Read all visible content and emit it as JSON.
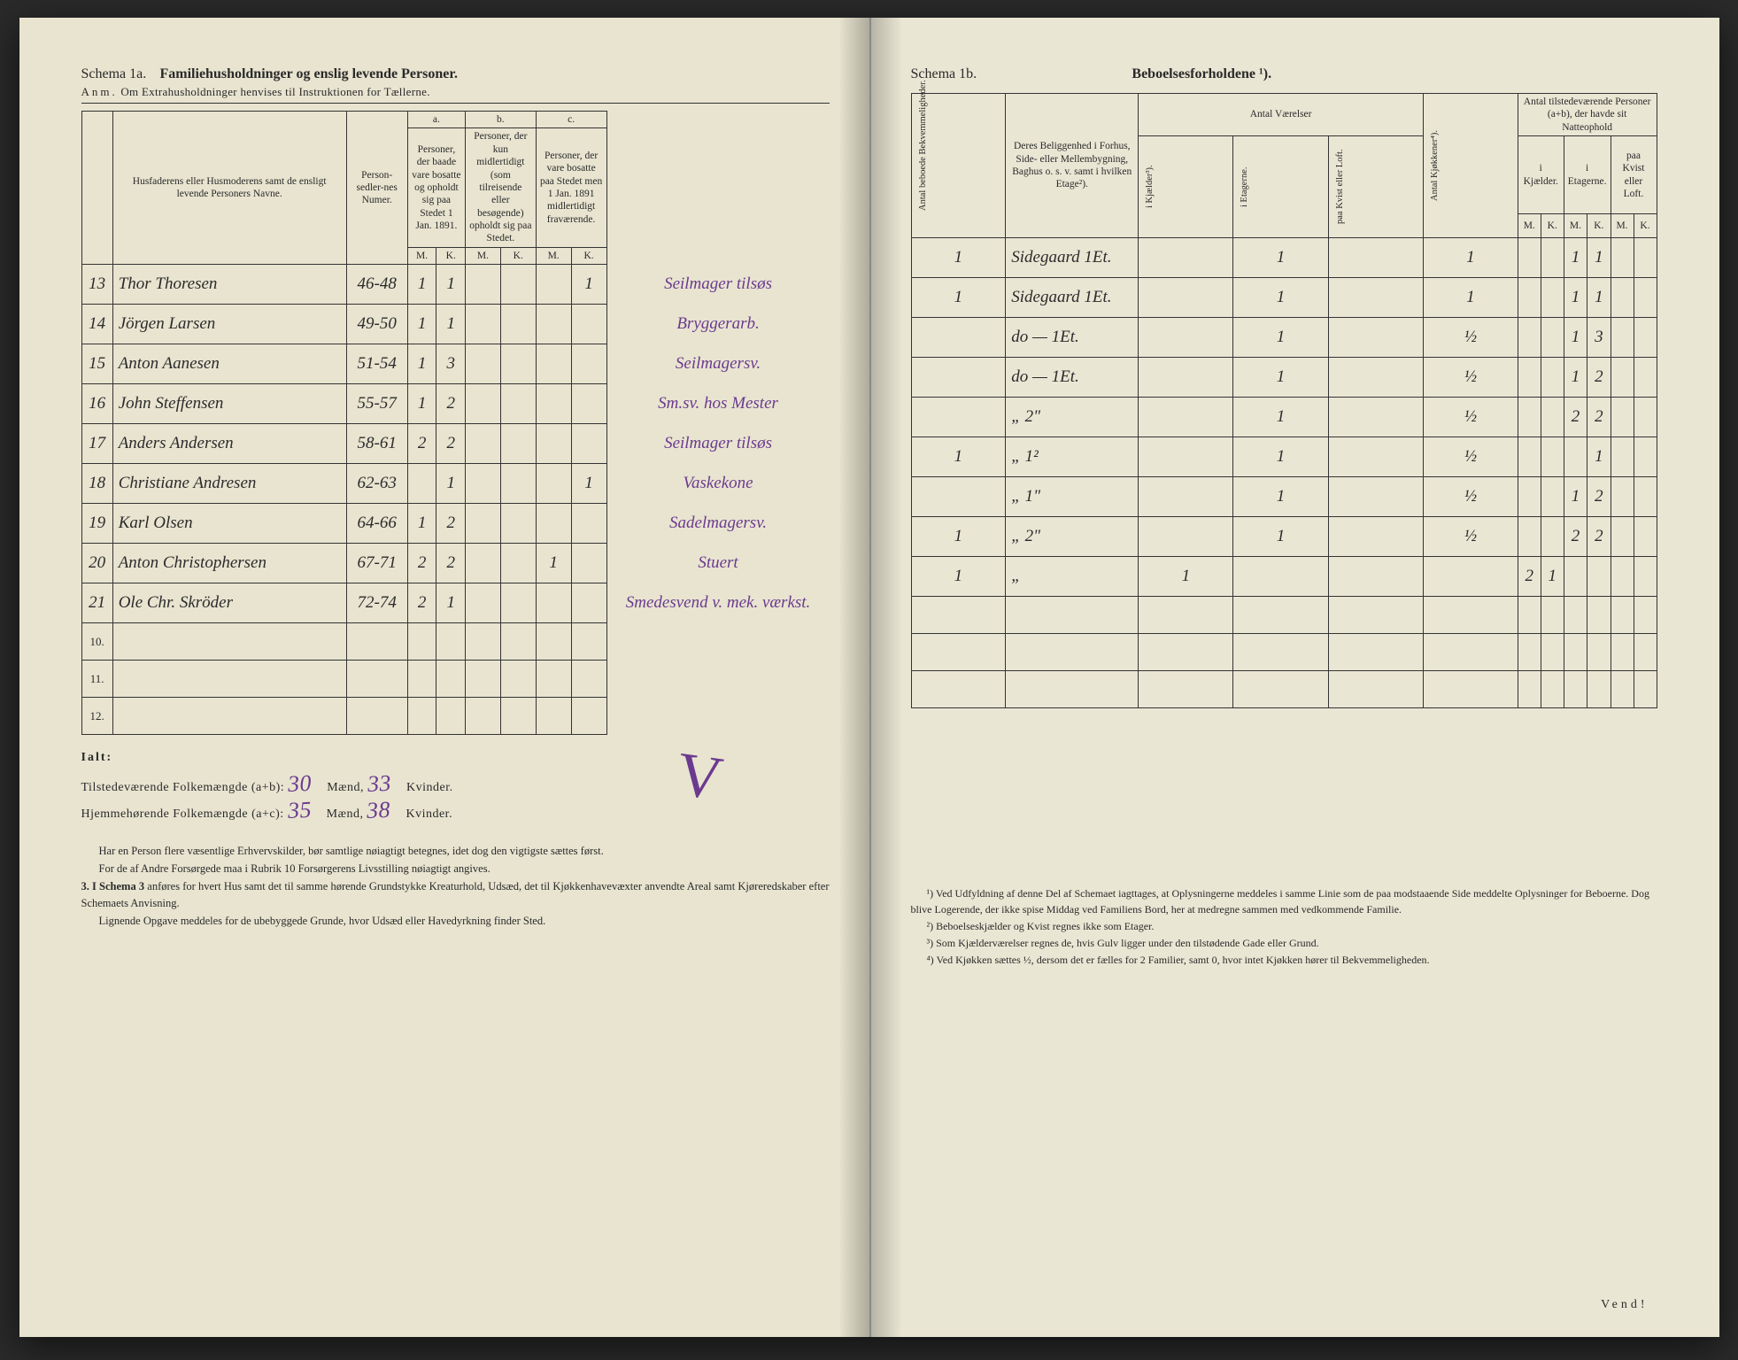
{
  "left": {
    "schema_label": "Schema 1a.",
    "schema_title": "Familiehusholdninger og enslig levende Personer.",
    "anm_label": "Anm.",
    "anm_text": "Om Extrahusholdninger henvises til Instruktionen for Tællerne.",
    "col_name": "Husfaderens eller Husmoderens samt de ensligt levende Personers Navne.",
    "col_sedler": "Person-sedler-nes Numer.",
    "group_a": "a.",
    "group_b": "b.",
    "group_c": "c.",
    "col_a": "Personer, der baade vare bosatte og opholdt sig paa Stedet 1 Jan. 1891.",
    "col_b": "Personer, der kun midlertidigt (som tilreisende eller besøgende) opholdt sig paa Stedet.",
    "col_c": "Personer, der vare bosatte paa Stedet men 1 Jan. 1891 midlertidigt fraværende.",
    "mk_m": "M.",
    "mk_k": "K.",
    "rows": [
      {
        "n": "13",
        "name": "Thor Thoresen",
        "sed": "46-48",
        "am": "1",
        "ak": "1",
        "bm": "",
        "bk": "",
        "cm": "",
        "ck": "1",
        "occ": "Seilmager tilsøs"
      },
      {
        "n": "14",
        "name": "Jörgen Larsen",
        "sed": "49-50",
        "am": "1",
        "ak": "1",
        "bm": "",
        "bk": "",
        "cm": "",
        "ck": "",
        "occ": "Bryggerarb."
      },
      {
        "n": "15",
        "name": "Anton Aanesen",
        "sed": "51-54",
        "am": "1",
        "ak": "3",
        "bm": "",
        "bk": "",
        "cm": "",
        "ck": "",
        "occ": "Seilmagersv."
      },
      {
        "n": "16",
        "name": "John Steffensen",
        "sed": "55-57",
        "am": "1",
        "ak": "2",
        "bm": "",
        "bk": "",
        "cm": "",
        "ck": "",
        "occ": "Sm.sv. hos Mester"
      },
      {
        "n": "17",
        "name": "Anders Andersen",
        "sed": "58-61",
        "am": "2",
        "ak": "2",
        "bm": "",
        "bk": "",
        "cm": "",
        "ck": "",
        "occ": "Seilmager tilsøs"
      },
      {
        "n": "18",
        "name": "Christiane Andresen",
        "sed": "62-63",
        "am": "",
        "ak": "1",
        "bm": "",
        "bk": "",
        "cm": "",
        "ck": "1",
        "occ": "Vaskekone"
      },
      {
        "n": "19",
        "name": "Karl Olsen",
        "sed": "64-66",
        "am": "1",
        "ak": "2",
        "bm": "",
        "bk": "",
        "cm": "",
        "ck": "",
        "occ": "Sadelmagersv."
      },
      {
        "n": "20",
        "name": "Anton Christophersen",
        "sed": "67-71",
        "am": "2",
        "ak": "2",
        "bm": "",
        "bk": "",
        "cm": "1",
        "ck": "",
        "occ": "Stuert"
      },
      {
        "n": "21",
        "name": "Ole Chr. Skröder",
        "sed": "72-74",
        "am": "2",
        "ak": "1",
        "bm": "",
        "bk": "",
        "cm": "",
        "ck": "",
        "occ": "Smedesvend v. mek. værkst."
      }
    ],
    "blank_rows": [
      "10.",
      "11.",
      "12."
    ],
    "totals_label": "Ialt:",
    "tot1_label": "Tilstedeværende Folkemængde (a+b):",
    "tot2_label": "Hjemmehørende Folkemængde (a+c):",
    "tot_m": "Mænd,",
    "tot_k": "Kvinder.",
    "tot1_m": "30",
    "tot1_k": "33",
    "tot2_m": "35",
    "tot2_k": "38",
    "para1": "Har en Person flere væsentlige Erhvervskilder, bør samtlige nøiagtigt betegnes, idet dog den vigtigste sættes først.",
    "para2": "For de af Andre Forsørgede maa i Rubrik 10 Forsørgerens Livsstilling nøiagtigt angives.",
    "para3_lead": "3. I Schema 3",
    "para3": " anføres for hvert Hus samt det til samme hørende Grundstykke Kreaturhold, Udsæd, det til Kjøkkenhavevæxter anvendte Areal samt Kjøreredskaber efter Schemaets Anvisning.",
    "para4": "Lignende Opgave meddeles for de ubebyggede Grunde, hvor Udsæd eller Havedyrkning finder Sted."
  },
  "right": {
    "schema_label": "Schema 1b.",
    "schema_title": "Beboelsesforholdene ¹).",
    "col_bekv": "Antal beboede Bekvemmeligheder.",
    "col_belig": "Deres Beliggenhed i Forhus, Side- eller Mellembygning, Baghus o. s. v. samt i hvilken Etage²).",
    "grp_vaer": "Antal Værelser",
    "col_kj": "i Kjælder³).",
    "col_et": "i Etagerne.",
    "col_kv": "paa Kvist eller Loft.",
    "col_kjok": "Antal Kjøkkener⁴).",
    "grp_natt": "Antal tilstedeværende Personer (a+b), der havde sit Natteophold",
    "natt_kj": "i Kjælder.",
    "natt_et": "i Etagerne.",
    "natt_kv": "paa Kvist eller Loft.",
    "mk_m": "M.",
    "mk_k": "K.",
    "rows": [
      {
        "bek": "1",
        "bel": "Sidegaard 1Et.",
        "kj": "",
        "et": "1",
        "kv": "",
        "kjok": "1",
        "nkjm": "",
        "nkjk": "",
        "netm": "1",
        "netk": "1",
        "nkvm": "",
        "nkvk": ""
      },
      {
        "bek": "1",
        "bel": "Sidegaard 1Et.",
        "kj": "",
        "et": "1",
        "kv": "",
        "kjok": "1",
        "nkjm": "",
        "nkjk": "",
        "netm": "1",
        "netk": "1",
        "nkvm": "",
        "nkvk": ""
      },
      {
        "bek": "",
        "bel": "do — 1Et.",
        "kj": "",
        "et": "1",
        "kv": "",
        "kjok": "½",
        "nkjm": "",
        "nkjk": "",
        "netm": "1",
        "netk": "3",
        "nkvm": "",
        "nkvk": ""
      },
      {
        "bek": "",
        "bel": "do — 1Et.",
        "kj": "",
        "et": "1",
        "kv": "",
        "kjok": "½",
        "nkjm": "",
        "nkjk": "",
        "netm": "1",
        "netk": "2",
        "nkvm": "",
        "nkvk": ""
      },
      {
        "bek": "",
        "bel": "„ 2\"",
        "kj": "",
        "et": "1",
        "kv": "",
        "kjok": "½",
        "nkjm": "",
        "nkjk": "",
        "netm": "2",
        "netk": "2",
        "nkvm": "",
        "nkvk": ""
      },
      {
        "bek": "1",
        "bel": "„ 1²",
        "kj": "",
        "et": "1",
        "kv": "",
        "kjok": "½",
        "nkjm": "",
        "nkjk": "",
        "netm": "",
        "netk": "1",
        "nkvm": "",
        "nkvk": ""
      },
      {
        "bek": "",
        "bel": "„ 1\"",
        "kj": "",
        "et": "1",
        "kv": "",
        "kjok": "½",
        "nkjm": "",
        "nkjk": "",
        "netm": "1",
        "netk": "2",
        "nkvm": "",
        "nkvk": ""
      },
      {
        "bek": "1",
        "bel": "„ 2\"",
        "kj": "",
        "et": "1",
        "kv": "",
        "kjok": "½",
        "nkjm": "",
        "nkjk": "",
        "netm": "2",
        "netk": "2",
        "nkvm": "",
        "nkvk": ""
      },
      {
        "bek": "1",
        "bel": "„",
        "kj": "1",
        "et": "",
        "kv": "",
        "kjok": "",
        "nkjm": "2",
        "nkjk": "1",
        "netm": "",
        "netk": "",
        "nkvm": "",
        "nkvk": ""
      }
    ],
    "fn1": "¹) Ved Udfyldning af denne Del af Schemaet iagttages, at Oplysningerne meddeles i samme Linie som de paa modstaaende Side meddelte Oplysninger for Beboerne. Dog blive Logerende, der ikke spise Middag ved Familiens Bord, her at medregne sammen med vedkommende Familie.",
    "fn2": "²) Beboelseskjælder og Kvist regnes ikke som Etager.",
    "fn3": "³) Som Kjælderværelser regnes de, hvis Gulv ligger under den tilstødende Gade eller Grund.",
    "fn4": "⁴) Ved Kjøkken sættes ½, dersom det er fælles for 2 Familier, samt 0, hvor intet Kjøkken hører til Bekvemmeligheden.",
    "vend": "Vend!"
  }
}
